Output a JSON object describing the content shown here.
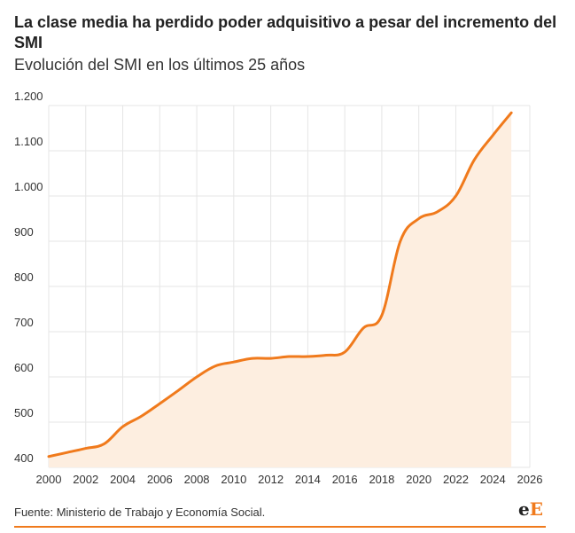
{
  "header": {
    "title": "La clase media ha perdido poder adquisitivo a pesar del incremento del SMI",
    "subtitle": "Evolución del SMI en los últimos 25 años"
  },
  "footer": {
    "source": "Fuente: Ministerio de Trabajo y Economía Social.",
    "logo_e1": "e",
    "logo_e2": "E"
  },
  "colors": {
    "line": "#f07a1c",
    "area": "#fdeee0",
    "grid": "#e6e6e6",
    "accent": "#f07a1c"
  },
  "chart_data": {
    "type": "area",
    "title": "La clase media ha perdido poder adquisitivo a pesar del incremento del SMI",
    "subtitle": "Evolución del SMI en los últimos 25 años",
    "xlabel": "",
    "ylabel": "",
    "xlim": [
      2000,
      2026
    ],
    "ylim": [
      400,
      1200
    ],
    "x_ticks": [
      "2000",
      "2002",
      "2004",
      "2006",
      "2008",
      "2010",
      "2012",
      "2014",
      "2016",
      "2018",
      "2020",
      "2022",
      "2024",
      "2026"
    ],
    "y_ticks": [
      "400",
      "500",
      "600",
      "700",
      "800",
      "900",
      "1.000",
      "1.100",
      "1.200"
    ],
    "grid": true,
    "legend": "none",
    "series": [
      {
        "x": [
          2000,
          2001,
          2002,
          2003,
          2004,
          2005,
          2006,
          2007,
          2008,
          2009,
          2010,
          2011,
          2012,
          2013,
          2014,
          2015,
          2016,
          2017,
          2018,
          2019,
          2020,
          2021,
          2022,
          2023,
          2024,
          2025
        ],
        "values": [
          424,
          433,
          442,
          452,
          490,
          513,
          541,
          570,
          600,
          624,
          633,
          641,
          641,
          645,
          645,
          648,
          655,
          708,
          736,
          900,
          950,
          965,
          1000,
          1080,
          1134,
          1184
        ]
      }
    ]
  }
}
